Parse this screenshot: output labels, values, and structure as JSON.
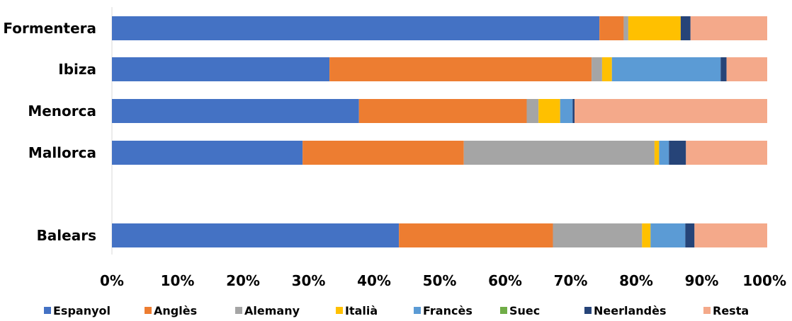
{
  "chart_data": {
    "type": "bar",
    "orientation": "horizontal",
    "stacked": "percent",
    "categories": [
      "Formentera",
      "Ibiza",
      "Menorca",
      "Mallorca",
      "Balears"
    ],
    "series": [
      {
        "name": "Espanyol",
        "color": "#4472C4",
        "values": [
          74.4,
          33.2,
          37.7,
          29.1,
          43.8
        ]
      },
      {
        "name": "Anglès",
        "color": "#ED7D31",
        "values": [
          3.7,
          40.0,
          25.6,
          24.6,
          23.5
        ]
      },
      {
        "name": "Alemany",
        "color": "#A5A5A5",
        "values": [
          0.7,
          1.6,
          1.8,
          29.1,
          13.6
        ]
      },
      {
        "name": "Italià",
        "color": "#FFC000",
        "values": [
          8.0,
          1.5,
          3.3,
          0.7,
          1.3
        ]
      },
      {
        "name": "Francès",
        "color": "#5B9BD5",
        "values": [
          0.0,
          16.6,
          1.9,
          1.5,
          5.3
        ]
      },
      {
        "name": "Suec",
        "color": "#70AD47",
        "values": [
          0.0,
          0.0,
          0.0,
          0.0,
          0.0
        ]
      },
      {
        "name": "Neerlandès",
        "color": "#264478",
        "values": [
          1.5,
          0.9,
          0.3,
          2.6,
          1.4
        ]
      },
      {
        "name": "Resta",
        "color": "#F4A98A",
        "values": [
          11.7,
          6.2,
          29.4,
          12.4,
          11.1
        ]
      }
    ],
    "xlim": [
      0,
      100
    ],
    "xticks": [
      "0%",
      "10%",
      "20%",
      "30%",
      "40%",
      "50%",
      "60%",
      "70%",
      "80%",
      "90%",
      "100%"
    ],
    "title": "",
    "xlabel": "",
    "ylabel": "",
    "grid": false,
    "legend": "bottom"
  }
}
